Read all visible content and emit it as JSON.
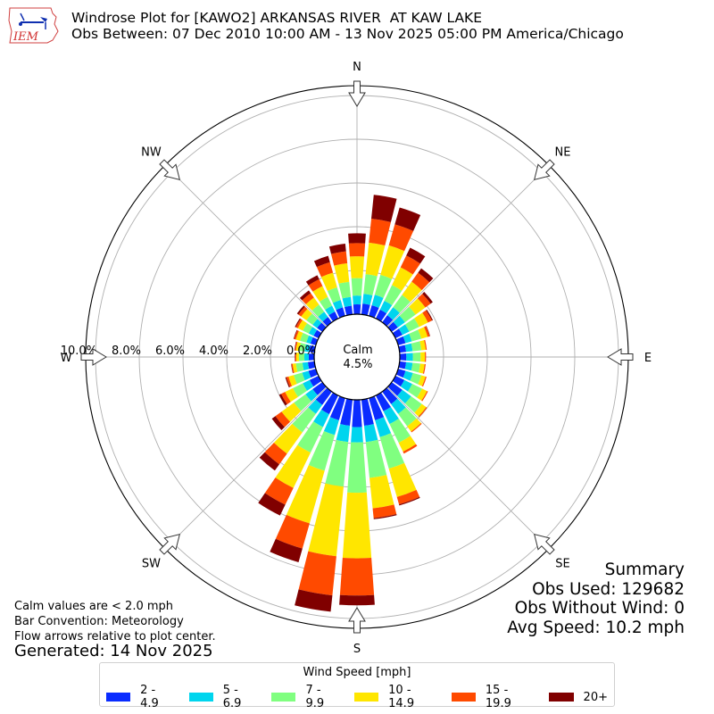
{
  "header": {
    "title_line1": "Windrose Plot for [KAWO2] ARKANSAS RIVER  AT KAW LAKE",
    "title_line2": "Obs Between: 07 Dec 2010 10:00 AM - 13 Nov 2025 05:00 PM America/Chicago",
    "logo_text": "IEM"
  },
  "center": {
    "label": "Calm",
    "value": "4.5%"
  },
  "notes": {
    "line1": "Calm values are < 2.0 mph",
    "line2": "Bar Convention: Meteorology",
    "line3": "Flow arrows relative to plot center.",
    "generated": "Generated: 14 Nov 2025"
  },
  "summary": {
    "title": "Summary",
    "obs_used": "Obs Used: 129682",
    "obs_without_wind": "Obs Without Wind: 0",
    "avg_speed": "Avg Speed: 10.2 mph"
  },
  "legend": {
    "title": "Wind Speed [mph]",
    "items": [
      {
        "label": "2 - 4.9",
        "color": "#0a2cff"
      },
      {
        "label": "5 - 6.9",
        "color": "#00d5ee"
      },
      {
        "label": "7 - 9.9",
        "color": "#80ff80"
      },
      {
        "label": "10 - 14.9",
        "color": "#ffe600"
      },
      {
        "label": "15 - 19.9",
        "color": "#ff4a00"
      },
      {
        "label": "20+",
        "color": "#800000"
      }
    ]
  },
  "chart_data": {
    "type": "windrose",
    "title": "Windrose Plot for [KAWO2] ARKANSAS RIVER  AT KAW LAKE",
    "subtitle": "Obs Between: 07 Dec 2010 10:00 AM - 13 Nov 2025 05:00 PM America/Chicago",
    "radial_ticks": [
      "0.0%",
      "2.0%",
      "4.0%",
      "6.0%",
      "8.0%",
      "10.0%"
    ],
    "rmax_percent": 10.5,
    "calm_percent": 4.5,
    "compass_labels": [
      "N",
      "NE",
      "E",
      "SE",
      "S",
      "SW",
      "W",
      "NW"
    ],
    "speed_bins": [
      "2 - 4.9",
      "5 - 6.9",
      "7 - 9.9",
      "10 - 14.9",
      "15 - 19.9",
      "20+"
    ],
    "colors": [
      "#0a2cff",
      "#00d5ee",
      "#80ff80",
      "#ffe600",
      "#ff4a00",
      "#800000"
    ],
    "directions_deg": [
      0,
      10,
      20,
      30,
      40,
      50,
      60,
      70,
      80,
      90,
      100,
      110,
      120,
      130,
      140,
      150,
      160,
      170,
      180,
      190,
      200,
      210,
      220,
      230,
      240,
      250,
      260,
      270,
      280,
      290,
      300,
      310,
      320,
      330,
      340,
      350
    ],
    "values_percent": [
      [
        0.45,
        0.4,
        0.8,
        1.0,
        0.6,
        0.45
      ],
      [
        0.5,
        0.45,
        0.9,
        1.45,
        1.1,
        1.1
      ],
      [
        0.5,
        0.5,
        0.95,
        1.4,
        1.0,
        0.8
      ],
      [
        0.45,
        0.45,
        0.8,
        0.9,
        0.6,
        0.4
      ],
      [
        0.4,
        0.45,
        0.7,
        0.75,
        0.5,
        0.25
      ],
      [
        0.35,
        0.4,
        0.6,
        0.55,
        0.3,
        0.12
      ],
      [
        0.35,
        0.35,
        0.5,
        0.45,
        0.2,
        0.05
      ],
      [
        0.35,
        0.3,
        0.45,
        0.3,
        0.1,
        0.02
      ],
      [
        0.3,
        0.3,
        0.4,
        0.2,
        0.05,
        0.0
      ],
      [
        0.3,
        0.3,
        0.35,
        0.2,
        0.05,
        0.0
      ],
      [
        0.3,
        0.3,
        0.35,
        0.2,
        0.05,
        0.0
      ],
      [
        0.35,
        0.35,
        0.4,
        0.2,
        0.05,
        0.0
      ],
      [
        0.45,
        0.4,
        0.5,
        0.25,
        0.05,
        0.0
      ],
      [
        0.6,
        0.5,
        0.6,
        0.25,
        0.05,
        0.0
      ],
      [
        0.7,
        0.55,
        0.7,
        0.3,
        0.05,
        0.0
      ],
      [
        0.8,
        0.65,
        0.95,
        0.45,
        0.1,
        0.0
      ],
      [
        1.05,
        0.8,
        1.5,
        1.35,
        0.35,
        0.05
      ],
      [
        1.2,
        0.75,
        1.65,
        1.4,
        0.45,
        0.05
      ],
      [
        1.25,
        0.7,
        2.3,
        3.0,
        1.7,
        0.45
      ],
      [
        1.2,
        0.75,
        2.05,
        3.2,
        1.8,
        0.75
      ],
      [
        1.05,
        0.7,
        1.7,
        2.5,
        1.2,
        0.65
      ],
      [
        0.95,
        0.65,
        1.3,
        1.8,
        0.85,
        0.55
      ],
      [
        0.75,
        0.5,
        1.05,
        1.2,
        0.6,
        0.35
      ],
      [
        0.55,
        0.4,
        0.65,
        0.7,
        0.35,
        0.2
      ],
      [
        0.45,
        0.35,
        0.5,
        0.4,
        0.2,
        0.1
      ],
      [
        0.35,
        0.3,
        0.4,
        0.25,
        0.1,
        0.05
      ],
      [
        0.3,
        0.25,
        0.3,
        0.15,
        0.05,
        0.02
      ],
      [
        0.25,
        0.2,
        0.25,
        0.12,
        0.05,
        0.02
      ],
      [
        0.25,
        0.2,
        0.25,
        0.15,
        0.05,
        0.02
      ],
      [
        0.25,
        0.2,
        0.3,
        0.2,
        0.08,
        0.03
      ],
      [
        0.25,
        0.25,
        0.3,
        0.25,
        0.1,
        0.05
      ],
      [
        0.3,
        0.25,
        0.35,
        0.3,
        0.15,
        0.08
      ],
      [
        0.3,
        0.3,
        0.4,
        0.4,
        0.25,
        0.15
      ],
      [
        0.35,
        0.3,
        0.45,
        0.55,
        0.35,
        0.2
      ],
      [
        0.4,
        0.35,
        0.6,
        0.7,
        0.5,
        0.3
      ],
      [
        0.4,
        0.4,
        0.7,
        0.85,
        0.55,
        0.35
      ]
    ]
  }
}
